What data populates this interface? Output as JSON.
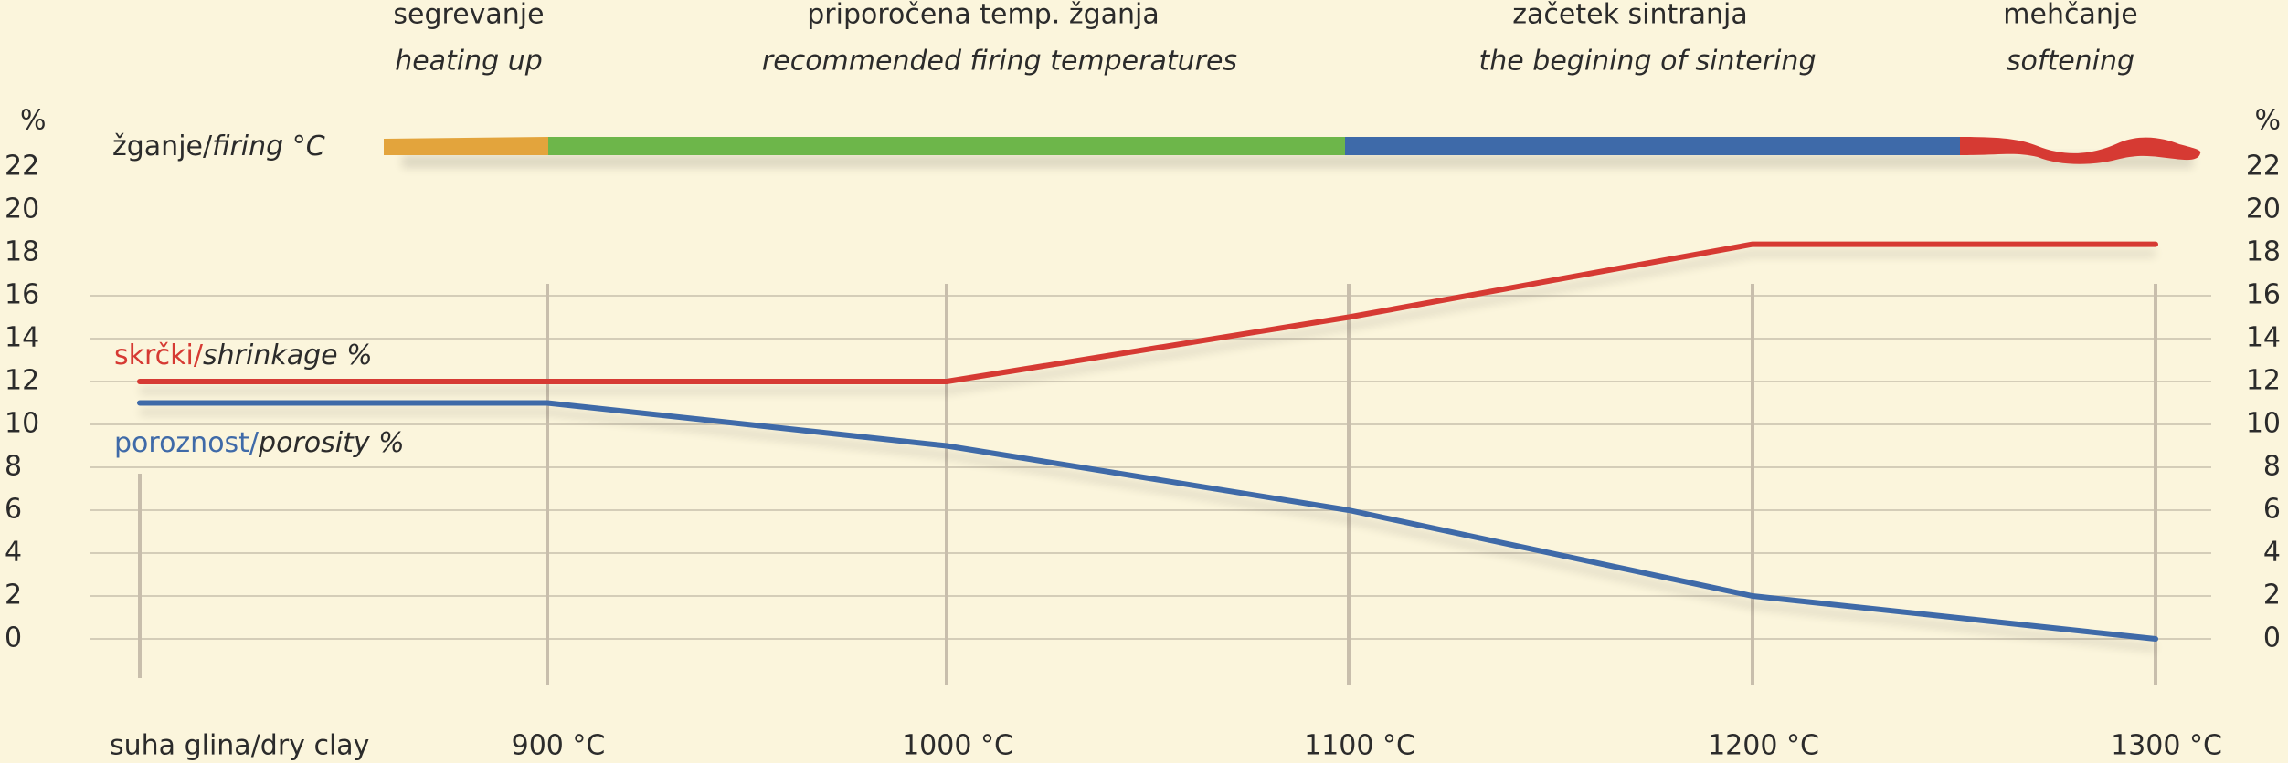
{
  "chart_data": {
    "type": "line",
    "y_unit": "%",
    "firing_label": "žganje/",
    "firing_label_en": "firing °C",
    "phases": [
      {
        "label": "segrevanje",
        "label_en": "heating up",
        "color": "#e3a43c"
      },
      {
        "label": "priporočena temp. žganja",
        "label_en": "recommended firing temperatures",
        "color": "#6db64a"
      },
      {
        "label": "začetek sintranja",
        "label_en": "the begining of sintering",
        "color": "#3e6aa9"
      },
      {
        "label": "mehčanje",
        "label_en": "softening",
        "color": "#d63a33"
      }
    ],
    "categories": [
      "suha glina/dry clay",
      "900 °C",
      "1000 °C",
      "1100 °C",
      "1200 °C",
      "1300 °C"
    ],
    "series": [
      {
        "name": "skrčki/",
        "name_en": "shrinkage %",
        "color": "#d63a33",
        "values": [
          12,
          12,
          12,
          15,
          18.4,
          18.4
        ]
      },
      {
        "name": "poroznost/",
        "name_en": "porosity %",
        "color": "#3f6aa8",
        "values": [
          11,
          11,
          9,
          6,
          2,
          0
        ]
      }
    ],
    "ylim": [
      0,
      22
    ],
    "yticks": [
      0,
      2,
      4,
      6,
      8,
      10,
      12,
      14,
      16,
      18,
      20,
      22
    ],
    "grid": true
  }
}
